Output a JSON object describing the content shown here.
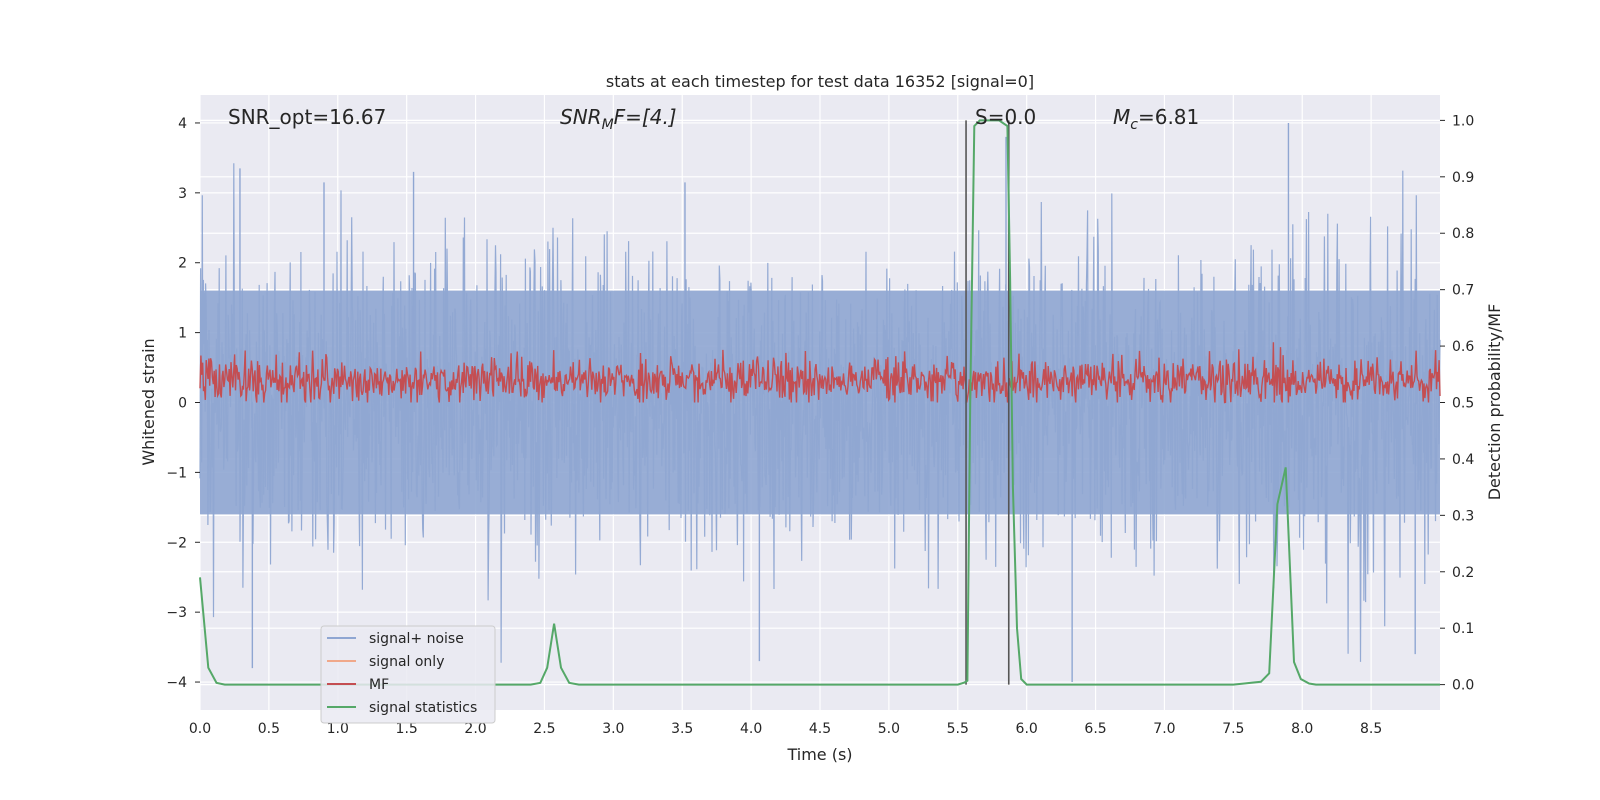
{
  "chart_data": {
    "type": "line",
    "title": "stats at each timestep for test data 16352 [signal=0]",
    "xlabel": "Time (s)",
    "ylabel_left": "Whitened strain",
    "ylabel_right": "Detection probability/MF",
    "xlim": [
      0,
      9.0
    ],
    "ylim_left": [
      -4.4,
      4.4
    ],
    "ylim_right": [
      -0.045,
      1.045
    ],
    "x_ticks": [
      "0.0",
      "0.5",
      "1.0",
      "1.5",
      "2.0",
      "2.5",
      "3.0",
      "3.5",
      "4.0",
      "4.5",
      "5.0",
      "5.5",
      "6.0",
      "6.5",
      "7.0",
      "7.5",
      "8.0",
      "8.5"
    ],
    "y_ticks_left": [
      "−4",
      "−3",
      "−2",
      "−1",
      "0",
      "1",
      "2",
      "3",
      "4"
    ],
    "y_ticks_right": [
      "0.0",
      "0.1",
      "0.2",
      "0.3",
      "0.4",
      "0.5",
      "0.6",
      "0.7",
      "0.8",
      "0.9",
      "1.0"
    ],
    "grid": true,
    "annotations": {
      "snr_opt": "SNR_opt=16.67",
      "snr_mf": {
        "main": "SNR",
        "sub": "M",
        "rest": "F=[4.]"
      },
      "s": "S=0.0",
      "mc": {
        "main": "M",
        "sub": "c",
        "rest": "=6.81"
      }
    },
    "vertical_lines": [
      5.56,
      5.87
    ],
    "legend": {
      "placement": "lower-left",
      "entries": [
        {
          "label": "signal+ noise",
          "color": "#8fa6d2"
        },
        {
          "label": "signal only",
          "color": "#f0a88a"
        },
        {
          "label": "MF",
          "color": "#c44e52"
        },
        {
          "label": "signal statistics",
          "color": "#55a868"
        }
      ]
    },
    "series": [
      {
        "name": "signal+ noise",
        "axis": "left",
        "color": "#8fa6d2",
        "approx_envelope": {
          "min": -4.0,
          "max": 4.0,
          "typical_abs": 2.0,
          "solid_band": [
            -1.6,
            1.6
          ]
        },
        "peaks": [
          {
            "x": 0.29,
            "y": 3.35
          },
          {
            "x": 0.38,
            "y": -3.8
          },
          {
            "x": 0.9,
            "y": 3.15
          },
          {
            "x": 1.55,
            "y": 3.3
          },
          {
            "x": 3.52,
            "y": 3.15
          },
          {
            "x": 4.06,
            "y": -3.7
          },
          {
            "x": 5.85,
            "y": 3.8
          },
          {
            "x": 6.33,
            "y": -4.0
          },
          {
            "x": 7.9,
            "y": 4.0
          },
          {
            "x": 8.82,
            "y": -3.6
          }
        ]
      },
      {
        "name": "MF",
        "axis": "left",
        "color": "#c44e52",
        "approx_band": {
          "center": 0.32,
          "min": 0.0,
          "max": 0.9
        }
      },
      {
        "name": "signal statistics",
        "axis": "right",
        "color": "#55a868",
        "x": [
          0.0,
          0.06,
          0.12,
          0.18,
          0.5,
          1.0,
          2.0,
          2.4,
          2.47,
          2.52,
          2.57,
          2.62,
          2.68,
          2.75,
          3.0,
          4.0,
          5.0,
          5.5,
          5.55,
          5.57,
          5.59,
          5.62,
          5.66,
          5.7,
          5.75,
          5.8,
          5.86,
          5.88,
          5.9,
          5.93,
          5.96,
          6.0,
          6.06,
          6.5,
          7.0,
          7.5,
          7.7,
          7.76,
          7.82,
          7.88,
          7.94,
          7.99,
          8.05,
          8.1,
          8.2,
          8.5,
          9.0
        ],
        "values": [
          0.19,
          0.03,
          0.003,
          0.0,
          0.0,
          0.0,
          0.0,
          0.0,
          0.003,
          0.03,
          0.108,
          0.03,
          0.003,
          0.0,
          0.0,
          0.0,
          0.0,
          0.0,
          0.004,
          0.007,
          0.5,
          0.99,
          1.0,
          1.0,
          1.0,
          1.0,
          0.99,
          0.72,
          0.35,
          0.1,
          0.01,
          0.0,
          0.0,
          0.0,
          0.0,
          0.0,
          0.005,
          0.02,
          0.32,
          0.385,
          0.04,
          0.01,
          0.002,
          0.0,
          0.0,
          0.0,
          0.0
        ]
      }
    ]
  }
}
